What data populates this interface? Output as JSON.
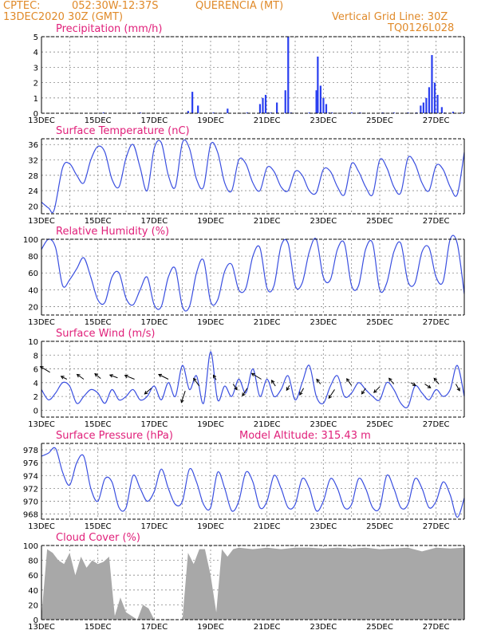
{
  "header": {
    "source": "CPTEC:",
    "coords": "052:30W-12:37S",
    "place": "QUERENCIA (MT)",
    "run": "13DEC2020 30Z (GMT)",
    "grid_note": "Vertical Grid Line: 30Z",
    "code": "TQ0126L028"
  },
  "colors": {
    "line": "#3a4fe0",
    "bar": "#2a3ff0",
    "cloud": "#a8a8a8",
    "title": "#e0207a",
    "header": "#e08a2a"
  },
  "chart_data": [
    {
      "type": "bar",
      "title": "Precipitation (mm/h)",
      "xlabel": "",
      "ylabel": "",
      "ylim": [
        0,
        5
      ],
      "yticks": [
        0,
        1,
        2,
        3,
        4,
        5
      ],
      "xticks": [
        "13DEC",
        "15DEC",
        "17DEC",
        "19DEC",
        "21DEC",
        "23DEC",
        "25DEC",
        "27DEC"
      ],
      "x_range_days": [
        13,
        28
      ],
      "grid": true,
      "x": [
        15.2,
        16.5,
        18.2,
        18.35,
        18.55,
        19.1,
        19.6,
        20.3,
        20.75,
        20.85,
        20.95,
        21.05,
        21.15,
        21.35,
        21.65,
        21.75,
        21.85,
        22.5,
        22.75,
        22.8,
        22.9,
        23.0,
        23.1,
        23.2,
        23.3,
        24.0,
        24.3,
        25.1,
        25.5,
        26.0,
        26.3,
        26.45,
        26.55,
        26.65,
        26.75,
        26.85,
        26.95,
        27.05,
        27.2,
        27.3,
        27.6,
        27.9
      ],
      "values": [
        0.05,
        0.05,
        0.15,
        1.4,
        0.5,
        0.05,
        0.3,
        0.05,
        0.6,
        1.0,
        1.2,
        0.05,
        0.05,
        0.7,
        1.5,
        5.0,
        0.05,
        0.05,
        1.5,
        3.7,
        1.8,
        1.0,
        0.6,
        0.05,
        0.05,
        0.05,
        0.05,
        0.05,
        0.05,
        0.05,
        0.05,
        0.5,
        0.7,
        1.0,
        1.7,
        3.8,
        2.0,
        1.2,
        0.4,
        0.05,
        0.1,
        0.05
      ]
    },
    {
      "type": "line",
      "title": "Surface Temperature (nC)",
      "xlabel": "",
      "ylabel": "",
      "ylim": [
        18,
        37.5
      ],
      "yticks": [
        20,
        24,
        28,
        32,
        36
      ],
      "xticks": [
        "13DEC",
        "15DEC",
        "17DEC",
        "19DEC",
        "21DEC",
        "23DEC",
        "25DEC",
        "27DEC"
      ],
      "x_range_days": [
        13,
        28
      ],
      "grid": true,
      "x": [
        13.0,
        13.25,
        13.45,
        13.75,
        14.0,
        14.25,
        14.5,
        14.75,
        15.0,
        15.25,
        15.5,
        15.75,
        16.0,
        16.25,
        16.5,
        16.75,
        17.0,
        17.25,
        17.5,
        17.75,
        18.0,
        18.25,
        18.5,
        18.75,
        19.0,
        19.25,
        19.5,
        19.75,
        20.0,
        20.25,
        20.5,
        20.75,
        21.0,
        21.25,
        21.5,
        21.75,
        22.0,
        22.25,
        22.5,
        22.75,
        23.0,
        23.25,
        23.5,
        23.75,
        24.0,
        24.25,
        24.5,
        24.75,
        25.0,
        25.25,
        25.5,
        25.75,
        26.0,
        26.25,
        26.5,
        26.75,
        27.0,
        27.25,
        27.5,
        27.75,
        28.0
      ],
      "series": [
        {
          "values": [
            21,
            19.5,
            19,
            30,
            31,
            28,
            26,
            32,
            35.5,
            34,
            27,
            25,
            32.5,
            36,
            30,
            24,
            35,
            36.5,
            28,
            25,
            36.5,
            35,
            27,
            25,
            36,
            34,
            26,
            24,
            32,
            31,
            26,
            24,
            30,
            29,
            25,
            24,
            29,
            28,
            24,
            23.5,
            29.5,
            29,
            25,
            23,
            31,
            29,
            25,
            23,
            32,
            30,
            25,
            23.5,
            32.5,
            31,
            26,
            24,
            30.5,
            29.5,
            25,
            23,
            34
          ]
        }
      ]
    },
    {
      "type": "line",
      "title": "Relative Humidity (%)",
      "xlabel": "",
      "ylabel": "",
      "ylim": [
        10,
        100
      ],
      "yticks": [
        20,
        40,
        60,
        80,
        100
      ],
      "xticks": [
        "13DEC",
        "15DEC",
        "17DEC",
        "19DEC",
        "21DEC",
        "23DEC",
        "25DEC",
        "27DEC"
      ],
      "x_range_days": [
        13,
        28
      ],
      "grid": true,
      "x": [
        13.0,
        13.25,
        13.5,
        13.75,
        14.0,
        14.25,
        14.5,
        14.75,
        15.0,
        15.25,
        15.5,
        15.75,
        16.0,
        16.25,
        16.5,
        16.75,
        17.0,
        17.25,
        17.5,
        17.75,
        18.0,
        18.25,
        18.5,
        18.75,
        19.0,
        19.25,
        19.5,
        19.75,
        20.0,
        20.25,
        20.5,
        20.75,
        21.0,
        21.25,
        21.5,
        21.75,
        22.0,
        22.25,
        22.5,
        22.75,
        23.0,
        23.25,
        23.5,
        23.75,
        24.0,
        24.25,
        24.5,
        24.75,
        25.0,
        25.25,
        25.5,
        25.75,
        26.0,
        26.25,
        26.5,
        26.75,
        27.0,
        27.25,
        27.5,
        27.75,
        28.0
      ],
      "series": [
        {
          "values": [
            88,
            100,
            90,
            45,
            52,
            65,
            78,
            55,
            28,
            25,
            55,
            60,
            30,
            22,
            40,
            55,
            22,
            20,
            55,
            65,
            20,
            20,
            60,
            75,
            26,
            28,
            62,
            70,
            40,
            42,
            80,
            90,
            42,
            45,
            92,
            95,
            45,
            48,
            85,
            100,
            55,
            52,
            88,
            95,
            45,
            45,
            88,
            95,
            40,
            48,
            85,
            95,
            50,
            48,
            85,
            90,
            55,
            50,
            100,
            95,
            35
          ]
        }
      ]
    },
    {
      "type": "line",
      "title": "Surface Wind (m/s)",
      "xlabel": "",
      "ylabel": "",
      "ylim": [
        -1,
        10
      ],
      "yticks": [
        0,
        2,
        4,
        6,
        8,
        10
      ],
      "xticks": [
        "13DEC",
        "15DEC",
        "17DEC",
        "19DEC",
        "21DEC",
        "23DEC",
        "25DEC",
        "27DEC"
      ],
      "x_range_days": [
        13,
        28
      ],
      "grid": true,
      "x": [
        13.0,
        13.25,
        13.5,
        13.75,
        14.0,
        14.25,
        14.5,
        14.75,
        15.0,
        15.25,
        15.5,
        15.75,
        16.0,
        16.25,
        16.5,
        16.75,
        17.0,
        17.25,
        17.5,
        17.75,
        18.0,
        18.25,
        18.5,
        18.75,
        19.0,
        19.25,
        19.5,
        19.75,
        20.0,
        20.25,
        20.5,
        20.75,
        21.0,
        21.25,
        21.5,
        21.75,
        22.0,
        22.25,
        22.5,
        22.75,
        23.0,
        23.25,
        23.5,
        23.75,
        24.0,
        24.25,
        24.5,
        24.75,
        25.0,
        25.25,
        25.5,
        25.75,
        26.0,
        26.25,
        26.5,
        26.75,
        27.0,
        27.25,
        27.5,
        27.75,
        28.0
      ],
      "series": [
        {
          "values": [
            3,
            1.5,
            2.5,
            4,
            3.5,
            1,
            2,
            3,
            2.5,
            1,
            3,
            1.5,
            2,
            3,
            1.5,
            2,
            3.5,
            1.5,
            4,
            2,
            6.5,
            3,
            5,
            1,
            8.5,
            1.5,
            3.5,
            2,
            4.5,
            2.5,
            6,
            2,
            4.5,
            2,
            3,
            5,
            1.5,
            4,
            6.5,
            2,
            1,
            3.5,
            5,
            2,
            2.5,
            4,
            3,
            2,
            1.5,
            4,
            3,
            1,
            0.5,
            3.5,
            2.5,
            1.5,
            3,
            2,
            3,
            6.5,
            2
          ]
        }
      ],
      "arrows": [
        {
          "x": 13.3,
          "y": 5.5,
          "u": -1,
          "v": 0.6
        },
        {
          "x": 13.9,
          "y": 4.5,
          "u": -0.6,
          "v": 0.3
        },
        {
          "x": 14.5,
          "y": 4.5,
          "u": -0.7,
          "v": 0.5
        },
        {
          "x": 15.1,
          "y": 4.6,
          "u": -0.6,
          "v": 0.5
        },
        {
          "x": 15.7,
          "y": 4.7,
          "u": -0.8,
          "v": 0.3
        },
        {
          "x": 16.3,
          "y": 4.5,
          "u": -1,
          "v": 0.4
        },
        {
          "x": 16.9,
          "y": 3.2,
          "u": -0.7,
          "v": -0.6
        },
        {
          "x": 17.5,
          "y": 4.5,
          "u": -1,
          "v": 0.5
        },
        {
          "x": 18.1,
          "y": 2.8,
          "u": -0.4,
          "v": -1.2
        },
        {
          "x": 18.6,
          "y": 3.5,
          "u": -0.6,
          "v": 0.8
        },
        {
          "x": 19.2,
          "y": 4.4,
          "u": -0.3,
          "v": 0.5
        },
        {
          "x": 19.8,
          "y": 3.8,
          "u": 0.4,
          "v": -0.6
        },
        {
          "x": 20.3,
          "y": 3.2,
          "u": -0.5,
          "v": -0.8
        },
        {
          "x": 20.8,
          "y": 4.5,
          "u": -1,
          "v": 0.6
        },
        {
          "x": 21.3,
          "y": 3.5,
          "u": -0.4,
          "v": 0.6
        },
        {
          "x": 21.8,
          "y": 3.6,
          "u": -0.3,
          "v": -0.5
        },
        {
          "x": 22.3,
          "y": 3.2,
          "u": -0.4,
          "v": -0.7
        },
        {
          "x": 22.9,
          "y": 3.8,
          "u": -0.4,
          "v": 0.5
        },
        {
          "x": 23.4,
          "y": 3.0,
          "u": -0.6,
          "v": -0.9
        },
        {
          "x": 24.0,
          "y": 3.6,
          "u": -0.5,
          "v": 0.7
        },
        {
          "x": 24.5,
          "y": 3.2,
          "u": -0.4,
          "v": -0.6
        },
        {
          "x": 25.0,
          "y": 3.4,
          "u": -0.6,
          "v": -0.6
        },
        {
          "x": 25.5,
          "y": 3.8,
          "u": -0.5,
          "v": 0.6
        },
        {
          "x": 26.1,
          "y": 4.0,
          "u": 0.5,
          "v": -0.3
        },
        {
          "x": 26.6,
          "y": 3.8,
          "u": 0.6,
          "v": -0.4
        },
        {
          "x": 27.1,
          "y": 3.8,
          "u": -0.5,
          "v": 0.6
        },
        {
          "x": 27.7,
          "y": 3.8,
          "u": 0.4,
          "v": -0.7
        }
      ]
    },
    {
      "type": "line",
      "title": "Surface Pressure (hPa)",
      "annotation": "Model Altitude: 315.43 m",
      "xlabel": "",
      "ylabel": "",
      "ylim": [
        967.2,
        979
      ],
      "yticks": [
        968,
        970,
        972,
        974,
        976,
        978
      ],
      "xticks": [
        "13DEC",
        "15DEC",
        "17DEC",
        "19DEC",
        "21DEC",
        "23DEC",
        "25DEC",
        "27DEC"
      ],
      "x_range_days": [
        13,
        28
      ],
      "grid": true,
      "x": [
        13.0,
        13.25,
        13.5,
        13.75,
        14.0,
        14.25,
        14.5,
        14.75,
        15.0,
        15.25,
        15.5,
        15.75,
        16.0,
        16.25,
        16.5,
        16.75,
        17.0,
        17.25,
        17.5,
        17.75,
        18.0,
        18.25,
        18.5,
        18.75,
        19.0,
        19.25,
        19.5,
        19.75,
        20.0,
        20.25,
        20.5,
        20.75,
        21.0,
        21.25,
        21.5,
        21.75,
        22.0,
        22.25,
        22.5,
        22.75,
        23.0,
        23.25,
        23.5,
        23.75,
        24.0,
        24.25,
        24.5,
        24.75,
        25.0,
        25.25,
        25.5,
        25.75,
        26.0,
        26.25,
        26.5,
        26.75,
        27.0,
        27.25,
        27.5,
        27.75,
        28.0
      ],
      "series": [
        {
          "values": [
            977,
            977.5,
            978.2,
            974.5,
            972.5,
            976,
            977,
            972,
            970,
            973.5,
            973,
            969,
            969,
            974,
            972,
            970,
            971.5,
            975,
            972,
            969.5,
            970,
            975,
            973,
            969.5,
            969,
            974.5,
            972,
            968.5,
            970,
            974.5,
            973,
            969,
            970,
            974,
            972,
            969,
            969.5,
            973.5,
            972,
            968.5,
            970,
            973.5,
            972,
            969,
            969.5,
            973.5,
            972,
            969,
            969,
            974,
            972,
            969,
            969.5,
            973.5,
            972,
            969,
            970,
            973,
            971,
            967.5,
            970.5
          ]
        }
      ]
    },
    {
      "type": "area",
      "title": "Cloud Cover (%)",
      "xlabel": "",
      "ylabel": "",
      "ylim": [
        0,
        100
      ],
      "yticks": [
        0,
        20,
        40,
        60,
        80,
        100
      ],
      "xticks": [
        "13DEC",
        "15DEC",
        "17DEC",
        "19DEC",
        "21DEC",
        "23DEC",
        "25DEC",
        "27DEC"
      ],
      "x_range_days": [
        13,
        28
      ],
      "grid": true,
      "x": [
        13.0,
        13.2,
        13.4,
        13.6,
        13.8,
        14.0,
        14.2,
        14.4,
        14.6,
        14.8,
        15.0,
        15.2,
        15.4,
        15.6,
        15.8,
        16.0,
        16.2,
        16.4,
        16.6,
        16.8,
        17.0,
        17.2,
        17.4,
        17.6,
        17.8,
        18.0,
        18.2,
        18.4,
        18.6,
        18.8,
        19.0,
        19.2,
        19.4,
        19.6,
        19.8,
        20.0,
        20.5,
        21.0,
        21.5,
        22.0,
        22.5,
        23.0,
        23.5,
        24.0,
        24.5,
        25.0,
        25.5,
        26.0,
        26.5,
        27.0,
        27.5,
        28.0
      ],
      "series": [
        {
          "values": [
            5,
            95,
            90,
            80,
            75,
            90,
            60,
            85,
            70,
            80,
            75,
            78,
            85,
            5,
            30,
            10,
            5,
            0,
            20,
            15,
            0,
            0,
            0,
            0,
            0,
            0,
            90,
            75,
            95,
            95,
            60,
            10,
            95,
            85,
            95,
            97,
            95,
            97,
            95,
            97,
            97,
            96,
            97,
            96,
            97,
            95,
            96,
            97,
            92,
            97,
            96,
            97
          ]
        }
      ]
    }
  ]
}
